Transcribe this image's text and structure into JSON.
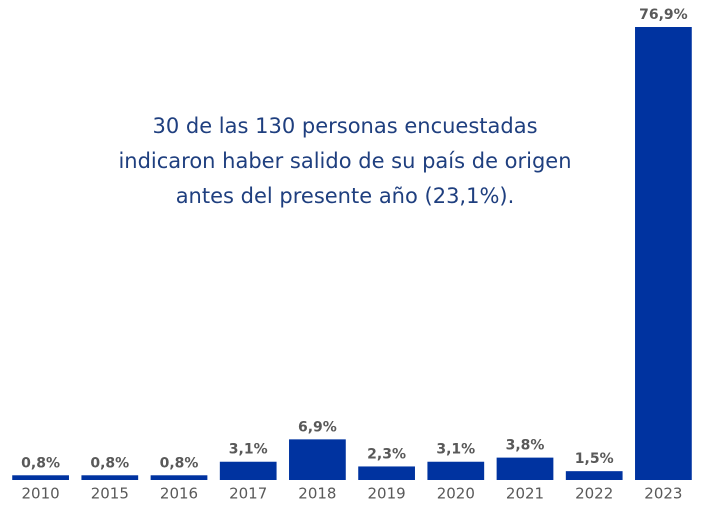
{
  "chart_data": {
    "type": "bar",
    "annotation": [
      "30 de las 130 personas encuestadas",
      "indicaron haber salido de su país de origen",
      "antes del presente año (23,1%)."
    ],
    "categories": [
      "2010",
      "2015",
      "2016",
      "2017",
      "2018",
      "2019",
      "2020",
      "2021",
      "2022",
      "2023"
    ],
    "values": [
      0.8,
      0.8,
      0.8,
      3.1,
      6.9,
      2.3,
      3.1,
      3.8,
      1.5,
      76.9
    ],
    "value_labels": [
      "0,8%",
      "0,8%",
      "0,8%",
      "3,1%",
      "6,9%",
      "2,3%",
      "3,1%",
      "3,8%",
      "1,5%",
      "76,9%"
    ],
    "color": "#0033a0"
  }
}
